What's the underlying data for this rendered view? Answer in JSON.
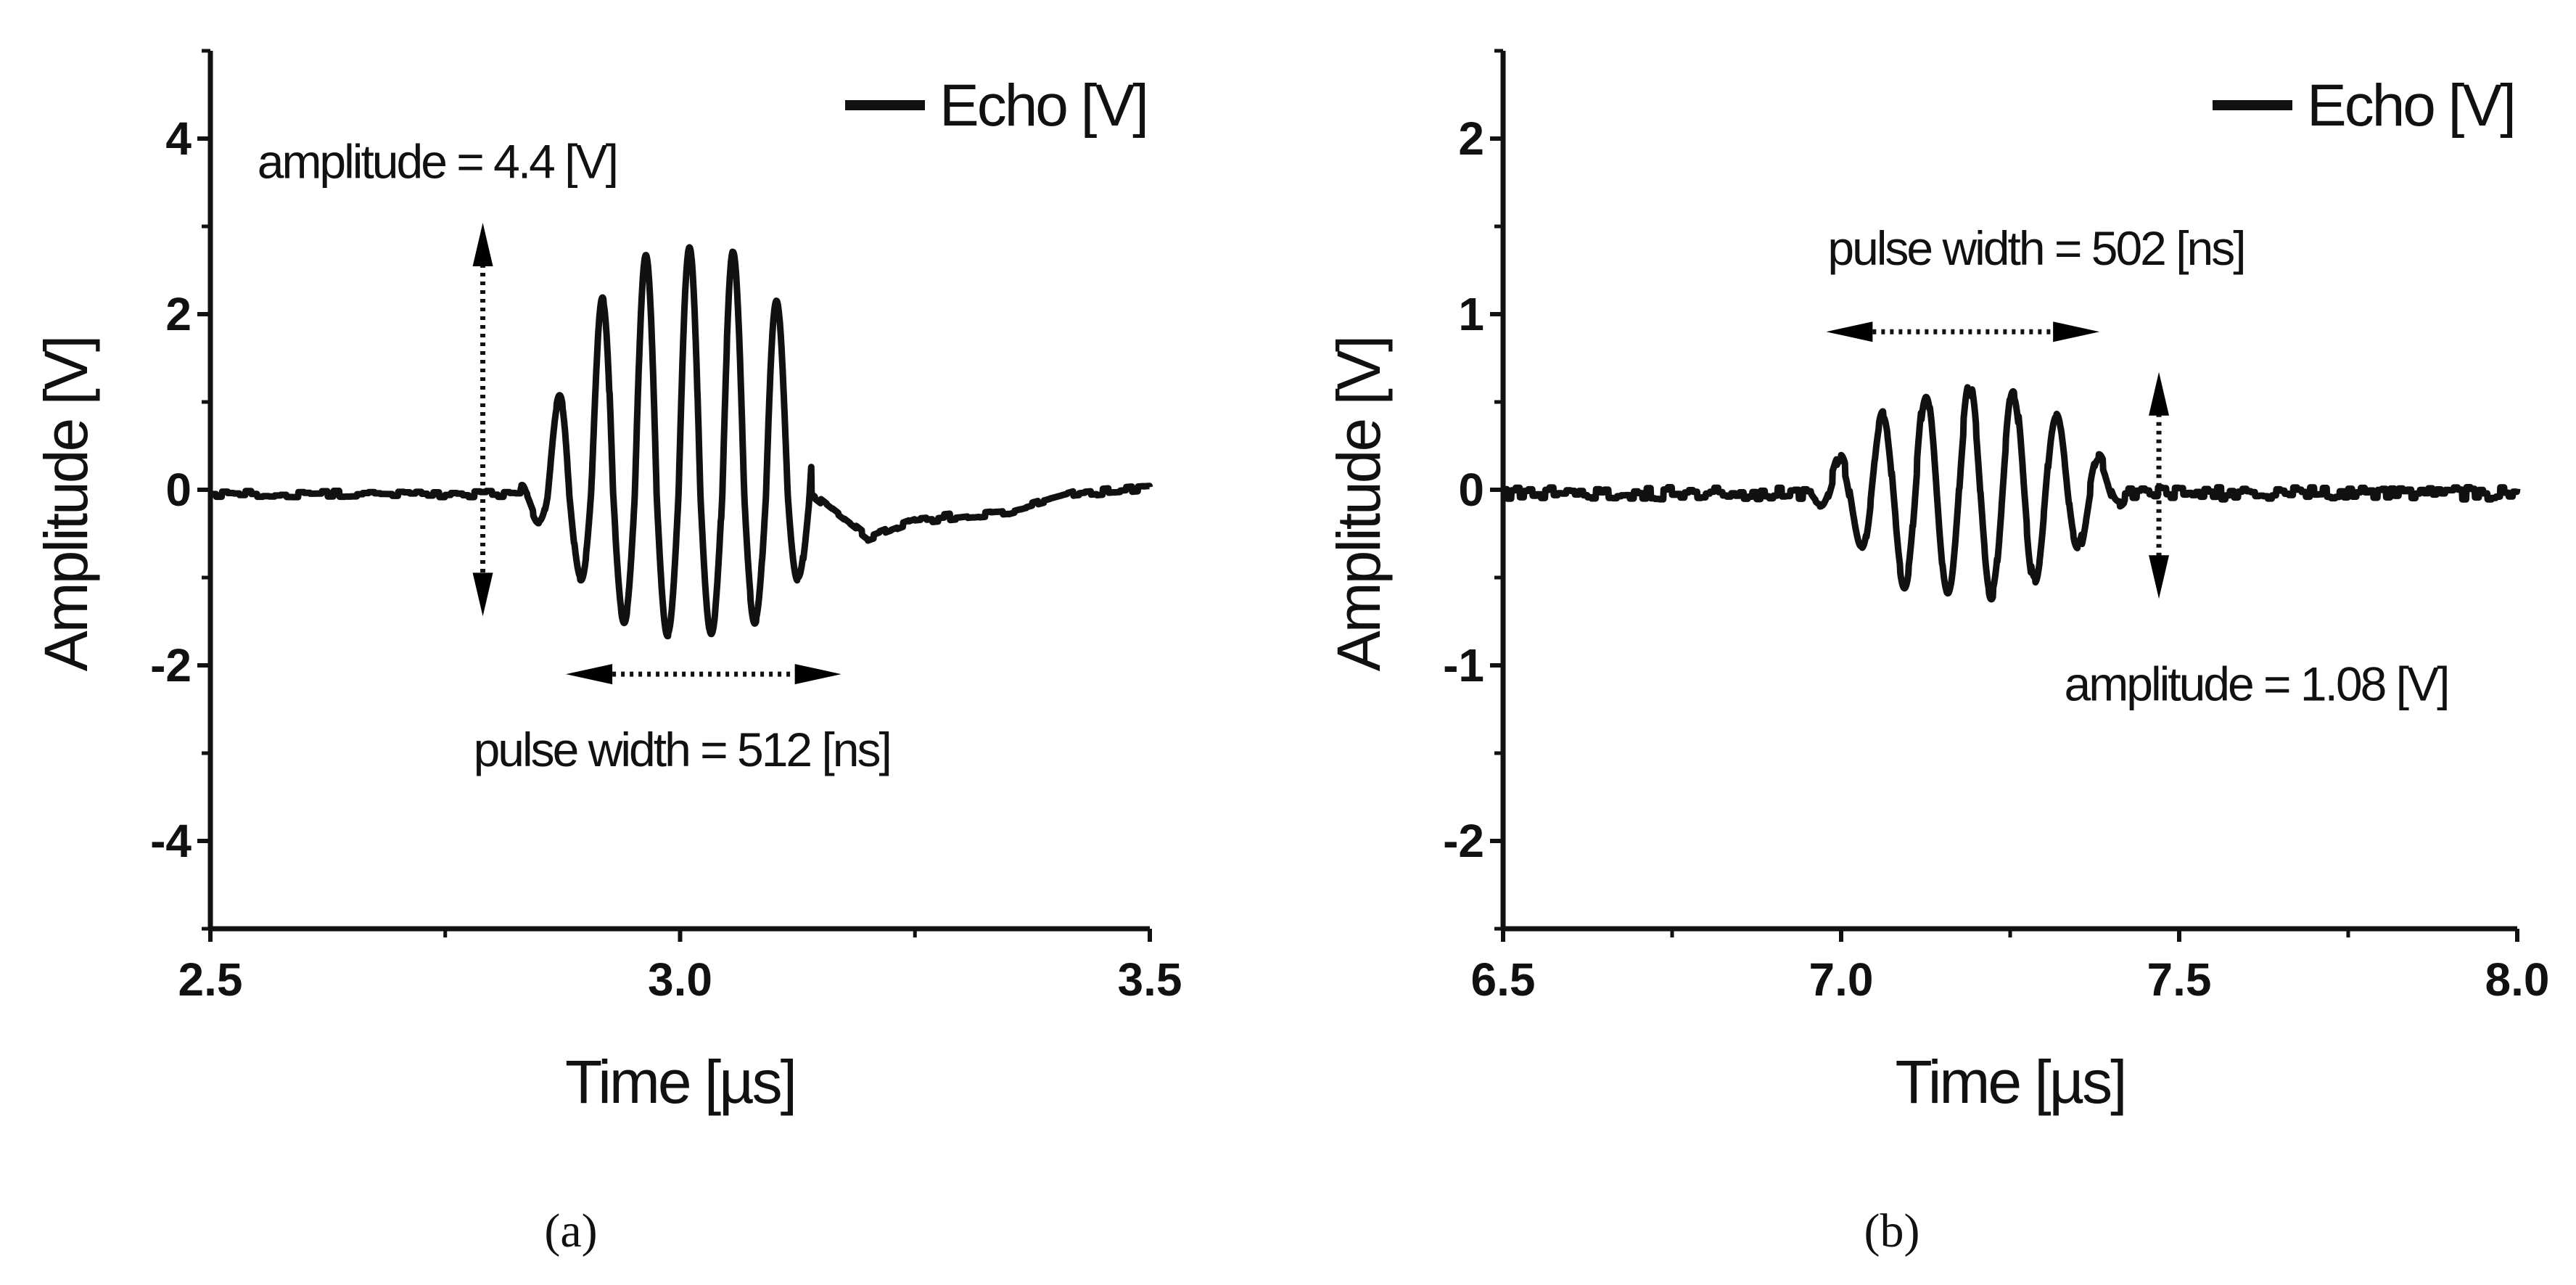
{
  "chart_data": [
    {
      "panel": "(a)",
      "type": "line",
      "xlabel": "Time [µs]",
      "ylabel": "Amplitude [V]",
      "xlim": [
        2.5,
        3.5
      ],
      "ylim": [
        -5,
        5
      ],
      "xticks": [
        2.5,
        3.0,
        3.5
      ],
      "xtick_labels": [
        "2.5",
        "3.0",
        "3.5"
      ],
      "x_minor_ticks": [
        2.75,
        3.25
      ],
      "yticks": [
        4,
        2,
        0,
        -2,
        -4
      ],
      "ytick_labels": [
        "4",
        "2",
        "0",
        "-2",
        "-4"
      ],
      "y_minor_ticks": [
        5,
        3,
        1,
        -1,
        -3,
        -5
      ],
      "legend": [
        "Echo [V]"
      ],
      "legend_position": "top-right",
      "series": [
        {
          "name": "Echo [V]",
          "color": "#111111",
          "baseline": -0.05,
          "signal": {
            "t_start": 2.78,
            "t_end": 3.14,
            "frequency_mhz": 21.5,
            "centre": 3.01,
            "peak_max": 2.85,
            "peak_min": -1.6
          },
          "tail": [
            {
              "x": 3.14,
              "y": -0.05
            },
            {
              "x": 3.2,
              "y": -0.55
            },
            {
              "x": 3.25,
              "y": -0.35
            },
            {
              "x": 3.35,
              "y": -0.25
            },
            {
              "x": 3.42,
              "y": -0.05
            },
            {
              "x": 3.5,
              "y": 0.02
            }
          ],
          "noise_amplitude": 0.04
        }
      ],
      "annotations": [
        {
          "text": "amplitude = 4.4 [V]",
          "arrow": "vertical",
          "arrow_x": 2.79,
          "arrow_from": -1.4,
          "arrow_to": 3.0,
          "label_x": 2.55,
          "label_y": 3.55
        },
        {
          "text": "pulse width  = 512 [ns]",
          "arrow": "horizontal",
          "arrow_y": -2.1,
          "arrow_from": 2.88,
          "arrow_to": 3.17,
          "label_x": 2.78,
          "label_y": -3.15
        }
      ]
    },
    {
      "panel": "(b)",
      "type": "line",
      "xlabel": "Time [µs]",
      "ylabel": "Amplitude [V]",
      "xlim": [
        6.5,
        8.0
      ],
      "ylim": [
        -2.5,
        2.5
      ],
      "xticks": [
        6.5,
        7.0,
        7.5,
        8.0
      ],
      "xtick_labels": [
        "6.5",
        "7.0",
        "7.5",
        "8.0"
      ],
      "x_minor_ticks": [
        6.75,
        7.25,
        7.75
      ],
      "yticks": [
        2,
        1,
        0,
        -1,
        -2
      ],
      "ytick_labels": [
        "2",
        "1",
        "0",
        "-1",
        "-2"
      ],
      "y_minor_ticks": [
        2.5,
        1.5,
        0.5,
        -0.5,
        -1.5,
        -2.5
      ],
      "legend": [
        "Echo [V]"
      ],
      "legend_position": "top-right",
      "series": [
        {
          "name": "Echo [V]",
          "color": "#111111",
          "baseline": -0.02,
          "signal": {
            "t_start": 6.95,
            "t_end": 7.42,
            "frequency_mhz": 15.5,
            "centre": 7.19,
            "peak_max": 0.6,
            "peak_min": -0.58
          },
          "tail": [],
          "noise_amplitude": 0.035
        }
      ],
      "annotations": [
        {
          "text": "pulse width  = 502 [ns]",
          "arrow": "horizontal",
          "arrow_y": 0.9,
          "arrow_from": 6.98,
          "arrow_to": 7.38,
          "label_x": 6.98,
          "label_y": 1.28
        },
        {
          "text": "amplitude = 1.08 [V]",
          "arrow": "vertical",
          "arrow_x": 7.47,
          "arrow_from": -0.6,
          "arrow_to": 0.65,
          "label_x": 7.33,
          "label_y": -1.2
        }
      ]
    }
  ]
}
